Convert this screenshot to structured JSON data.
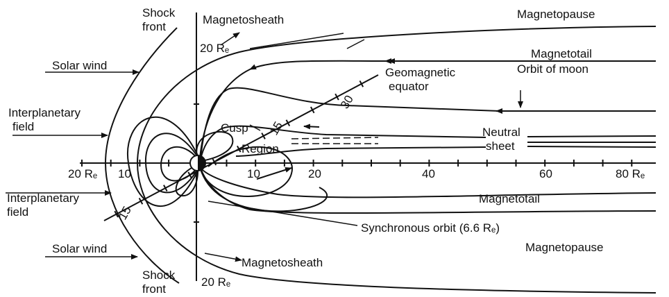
{
  "labels": {
    "shock_front_top": [
      "Shock",
      "front"
    ],
    "magnetosheath_top": "Magnetosheath",
    "distance_top": "20 Rₑ",
    "magnetopause_top": "Magnetopause",
    "solar_wind_top": "Solar wind",
    "magnetotail_top": "Magnetotail",
    "orbit_of_moon": "Orbit of moon",
    "geomagnetic_equator": [
      "Geomagnetic",
      "equator"
    ],
    "interplanetary_field_top": [
      "Interplanetary",
      "field"
    ],
    "cusp": "Cusp",
    "region": "Region",
    "neutral_sheet": [
      "Neutral",
      "sheet"
    ],
    "interplanetary_field_bottom": [
      "Interplanetary",
      "field"
    ],
    "magnetotail_bottom": "Magnetotail",
    "synchronous_orbit": "Synchronous orbit (6.6 Rₑ)",
    "solar_wind_bottom": "Solar wind",
    "magnetopause_bottom": "Magnetopause",
    "magnetosheath_bottom": "Magnetosheath",
    "shock_front_bottom": [
      "Shock",
      "front"
    ],
    "distance_bottom": "20 Rₑ"
  },
  "x_axis_labels": [
    "20 Rₑ",
    "10",
    "10",
    "20",
    "40",
    "60",
    "80 Rₑ"
  ],
  "equator_labels": [
    "15",
    "30",
    "15"
  ]
}
